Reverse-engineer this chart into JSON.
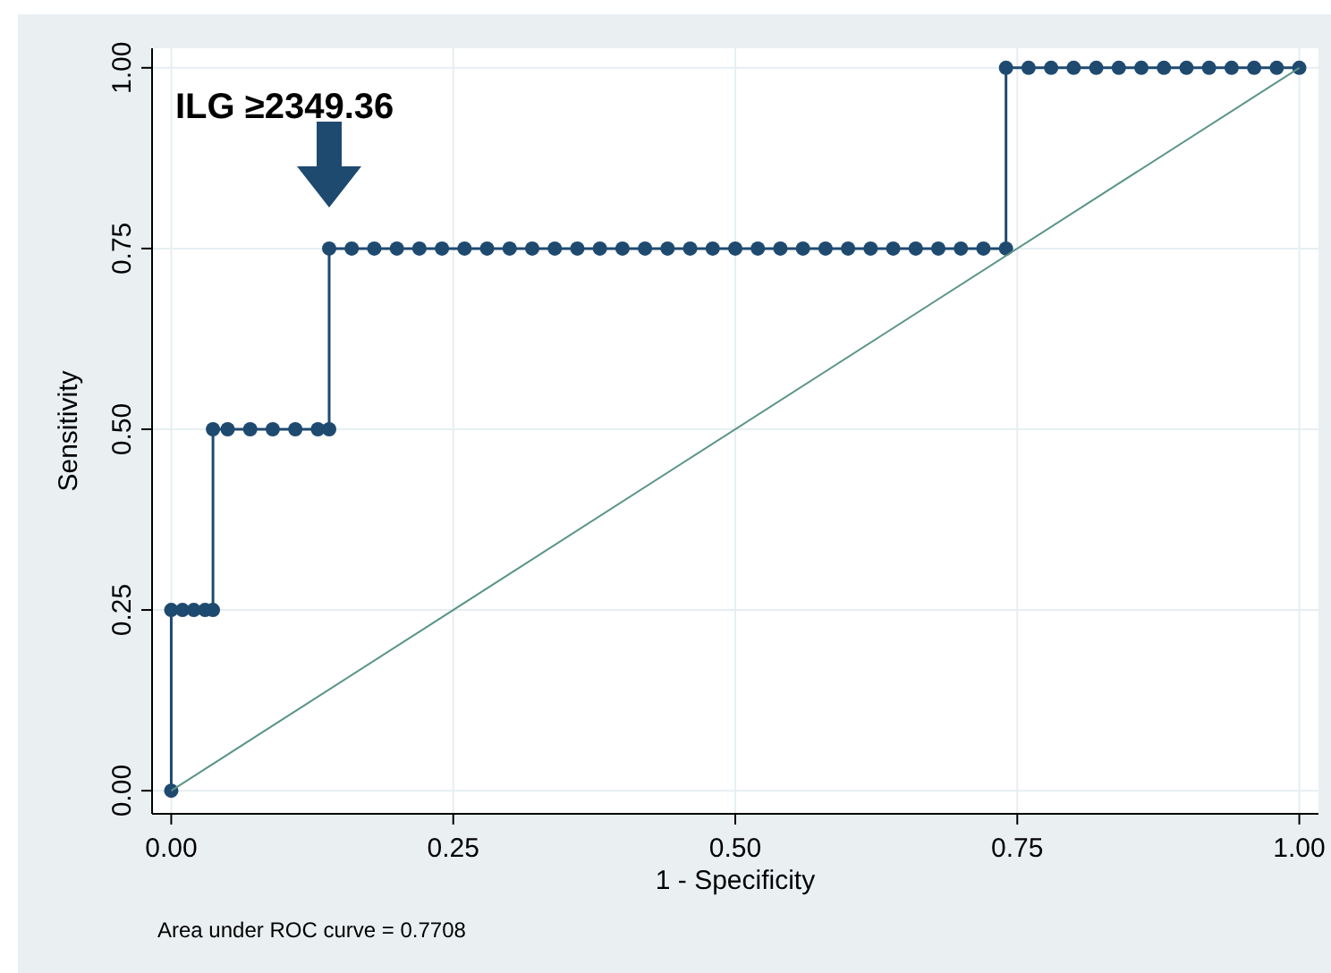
{
  "chart_data": {
    "type": "line",
    "xlabel": "1 - Specificity",
    "ylabel": "Sensitivity",
    "xlim": [
      -0.017,
      1.017
    ],
    "ylim": [
      -0.032,
      1.027
    ],
    "xticks": [
      {
        "value": 0,
        "label": "0.00"
      },
      {
        "value": 0.25,
        "label": "0.25"
      },
      {
        "value": 0.5,
        "label": "0.50"
      },
      {
        "value": 0.75,
        "label": "0.75"
      },
      {
        "value": 1,
        "label": "1.00"
      }
    ],
    "yticks": [
      {
        "value": 0,
        "label": "0.00"
      },
      {
        "value": 0.25,
        "label": "0.25"
      },
      {
        "value": 0.5,
        "label": "0.50"
      },
      {
        "value": 0.75,
        "label": "0.75"
      },
      {
        "value": 1,
        "label": "1.00"
      }
    ],
    "grid": true,
    "series": [
      {
        "color": "#1f4a70",
        "marker": "circle",
        "x": [
          0,
          0,
          0.01,
          0.02,
          0.03,
          0.037,
          0.037,
          0.05,
          0.07,
          0.09,
          0.11,
          0.13,
          0.14,
          0.14,
          0.16,
          0.18,
          0.2,
          0.22,
          0.24,
          0.26,
          0.28,
          0.3,
          0.32,
          0.34,
          0.36,
          0.38,
          0.4,
          0.42,
          0.44,
          0.46,
          0.48,
          0.5,
          0.52,
          0.54,
          0.56,
          0.58,
          0.6,
          0.62,
          0.64,
          0.66,
          0.68,
          0.7,
          0.72,
          0.74,
          0.74,
          0.76,
          0.78,
          0.8,
          0.82,
          0.84,
          0.86,
          0.88,
          0.9,
          0.92,
          0.94,
          0.96,
          0.98,
          1
        ],
        "values": [
          0,
          0.25,
          0.25,
          0.25,
          0.25,
          0.25,
          0.5,
          0.5,
          0.5,
          0.5,
          0.5,
          0.5,
          0.5,
          0.75,
          0.75,
          0.75,
          0.75,
          0.75,
          0.75,
          0.75,
          0.75,
          0.75,
          0.75,
          0.75,
          0.75,
          0.75,
          0.75,
          0.75,
          0.75,
          0.75,
          0.75,
          0.75,
          0.75,
          0.75,
          0.75,
          0.75,
          0.75,
          0.75,
          0.75,
          0.75,
          0.75,
          0.75,
          0.75,
          0.75,
          1,
          1,
          1,
          1,
          1,
          1,
          1,
          1,
          1,
          1,
          1,
          1,
          1,
          1
        ]
      },
      {
        "color": "#5b9488",
        "marker": "none",
        "x": [
          0,
          1
        ],
        "values": [
          0,
          1
        ]
      }
    ],
    "annotations": [
      "ILG ≥2349.36",
      "Area under ROC curve = 0.7708"
    ]
  }
}
